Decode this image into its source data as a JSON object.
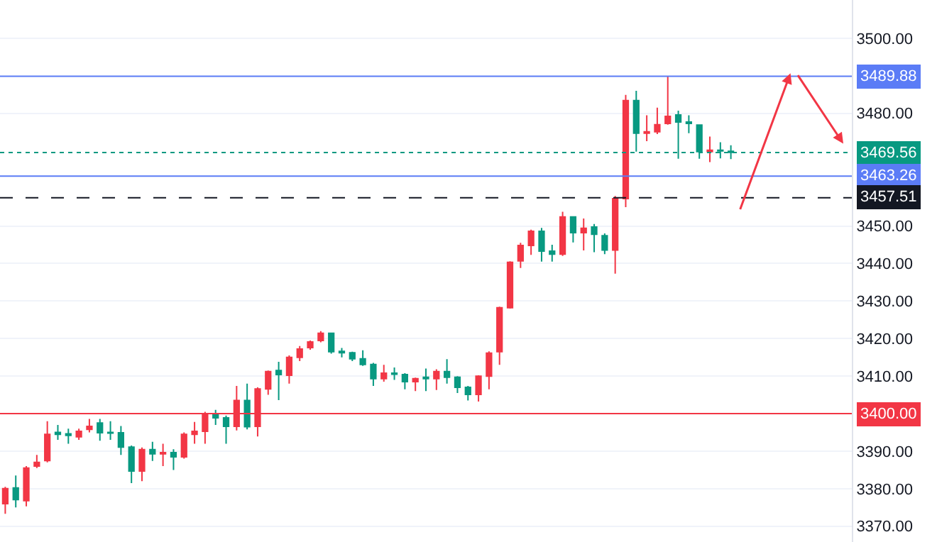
{
  "chart_data": {
    "type": "candlestick",
    "categories": [
      null,
      null,
      null,
      null,
      null,
      null,
      null,
      null,
      null,
      null,
      null,
      null,
      null,
      null,
      null,
      null,
      null,
      null,
      null,
      null,
      null,
      null,
      null,
      null,
      null,
      null,
      null,
      null,
      null,
      null,
      null,
      null,
      null,
      null,
      null,
      null,
      null,
      null,
      null,
      null,
      null,
      null,
      null,
      null,
      null,
      null,
      null,
      null,
      null,
      null,
      null,
      null,
      null,
      null,
      null,
      null,
      null,
      null,
      null,
      null,
      null,
      null,
      null,
      null,
      null,
      null,
      null,
      null,
      null,
      null,
      null,
      null,
      null,
      null,
      null,
      null,
      null,
      null,
      null,
      null,
      null
    ],
    "ohlc": [
      [
        3376,
        3380.5,
        3373.3,
        3380
      ],
      [
        3380.2,
        3383.5,
        3375,
        3377.1
      ],
      [
        3376.8,
        3386,
        3375.3,
        3385.5
      ],
      [
        3386,
        3389,
        3385.5,
        3387
      ],
      [
        3387.5,
        3398,
        3387,
        3394.5
      ],
      [
        3395,
        3397,
        3393,
        3394.5
      ],
      [
        3394.6,
        3396,
        3392,
        3394.2
      ],
      [
        3393.8,
        3396,
        3393,
        3395.3
      ],
      [
        3395.8,
        3398.6,
        3395,
        3396.6
      ],
      [
        3397.5,
        3398.6,
        3392.8,
        3394.9
      ],
      [
        3395,
        3398,
        3393,
        3394.8
      ],
      [
        3394.9,
        3396.7,
        3389,
        3391.1
      ],
      [
        3391.1,
        3391.5,
        3381.5,
        3384.7
      ],
      [
        3384.7,
        3391,
        3382,
        3390.4
      ],
      [
        3390.4,
        3392.5,
        3387.4,
        3389.3
      ],
      [
        3389.3,
        3392,
        3386,
        3389.6
      ],
      [
        3389.6,
        3390.5,
        3385,
        3388.5
      ],
      [
        3388.5,
        3395,
        3388,
        3394.5
      ],
      [
        3394.5,
        3397.8,
        3392,
        3395.3
      ],
      [
        3395.3,
        3400.5,
        3392,
        3400
      ],
      [
        3400,
        3401,
        3397,
        3398.9
      ],
      [
        3398.9,
        3399.5,
        3392,
        3396.6
      ],
      [
        3396.6,
        3407.4,
        3395.5,
        3403.5
      ],
      [
        3403.5,
        3408,
        3395.8,
        3396.5
      ],
      [
        3396.6,
        3407,
        3393.9,
        3406.6
      ],
      [
        3406.6,
        3411.5,
        3405,
        3411.2
      ],
      [
        3411.5,
        3413.8,
        3403.6,
        3410.4
      ],
      [
        3410.2,
        3415.5,
        3408,
        3415
      ],
      [
        3415,
        3418,
        3414,
        3417.2
      ],
      [
        3417.6,
        3419.5,
        3417,
        3419.1
      ],
      [
        3419.5,
        3422,
        3419,
        3421.4
      ],
      [
        3421.4,
        3421.5,
        3416,
        3416.5
      ],
      [
        3416.6,
        3417.5,
        3415,
        3416.2
      ],
      [
        3416.2,
        3416.5,
        3414,
        3414.6
      ],
      [
        3414.6,
        3416.9,
        3412.7,
        3413.1
      ],
      [
        3413.1,
        3413.5,
        3407.4,
        3409.3
      ],
      [
        3409.3,
        3413,
        3408.5,
        3410.8
      ],
      [
        3410.8,
        3412.3,
        3409,
        3410.5
      ],
      [
        3410.4,
        3410.8,
        3406.5,
        3408.5
      ],
      [
        3408.5,
        3409.6,
        3406,
        3409.3
      ],
      [
        3409.7,
        3412,
        3406,
        3409.3
      ],
      [
        3409.3,
        3411.8,
        3406.3,
        3411.2
      ],
      [
        3411.2,
        3414.5,
        3408,
        3409.7
      ],
      [
        3409.7,
        3410,
        3405.5,
        3407
      ],
      [
        3407,
        3407.4,
        3403.5,
        3405.1
      ],
      [
        3405.1,
        3410.2,
        3403.2,
        3410
      ],
      [
        3410,
        3416.6,
        3406.5,
        3416.1
      ],
      [
        3416.5,
        3428.5,
        3413,
        3428.2
      ],
      [
        3428.2,
        3440.6,
        3428,
        3440.3
      ],
      [
        3440.7,
        3445.5,
        3438.8,
        3444.8
      ],
      [
        3444.8,
        3449,
        3442.3,
        3448.6
      ],
      [
        3448.6,
        3449.5,
        3440.5,
        3443.3
      ],
      [
        3443.3,
        3445,
        3440.5,
        3442.5
      ],
      [
        3442.5,
        3453.8,
        3442,
        3452.4
      ],
      [
        3452.4,
        3452.6,
        3445.6,
        3448.2
      ],
      [
        3448.2,
        3452,
        3443.5,
        3449.4
      ],
      [
        3449.7,
        3450.5,
        3443,
        3447.8
      ],
      [
        3447.4,
        3448,
        3442.5,
        3443.6
      ],
      [
        3443.6,
        3458,
        3437.3,
        3457.3
      ],
      [
        3457.3,
        3484.9,
        3455,
        3483.4
      ],
      [
        3483.4,
        3486,
        3469.8,
        3474.7
      ],
      [
        3474.7,
        3479.5,
        3472.6,
        3475.1
      ],
      [
        3475.1,
        3481.5,
        3474.5,
        3477
      ],
      [
        3477.3,
        3489.9,
        3477,
        3479.2
      ],
      [
        3479.6,
        3480.7,
        3467.9,
        3477.7
      ],
      [
        3477.7,
        3479.5,
        3474.7,
        3477.3
      ],
      [
        3476.9,
        3477,
        3467.9,
        3469.8
      ],
      [
        3469.8,
        3473.8,
        3467,
        3470.2
      ],
      [
        3470.2,
        3472.3,
        3468,
        3470
      ],
      [
        3469.9,
        3471.5,
        3467.8,
        3469.6
      ],
      null,
      null,
      null,
      null,
      null,
      null,
      null,
      null,
      null,
      null,
      null
    ],
    "colors": [
      "#f23645",
      "#089981",
      "#f23645",
      "#f23645",
      "#f23645",
      "#089981",
      "#089981",
      "#f23645",
      "#f23645",
      "#089981",
      "#089981",
      "#089981",
      "#089981",
      "#f23645",
      "#089981",
      "#f23645",
      "#089981",
      "#f23645",
      "#f23645",
      "#f23645",
      "#089981",
      "#089981",
      "#f23645",
      "#089981",
      "#f23645",
      "#f23645",
      "#089981",
      "#f23645",
      "#f23645",
      "#f23645",
      "#f23645",
      "#089981",
      "#089981",
      "#089981",
      "#089981",
      "#089981",
      "#f23645",
      "#089981",
      "#089981",
      "#f23645",
      "#089981",
      "#f23645",
      "#089981",
      "#089981",
      "#089981",
      "#f23645",
      "#f23645",
      "#f23645",
      "#f23645",
      "#f23645",
      "#f23645",
      "#089981",
      "#089981",
      "#f23645",
      "#089981",
      "#f23645",
      "#089981",
      "#089981",
      "#f23645",
      "#f23645",
      "#089981",
      "#f23645",
      "#f23645",
      "#f23645",
      "#089981",
      "#089981",
      "#089981",
      "#f23645",
      "#089981",
      "#089981",
      null,
      null,
      null,
      null,
      null,
      null,
      null,
      null,
      null,
      null,
      null
    ],
    "ylim": [
      3365.8,
      3510.2
    ],
    "yticks": [
      {
        "value": 3370,
        "label": "3370.00"
      },
      {
        "value": 3380,
        "label": "3380.00"
      },
      {
        "value": 3390,
        "label": "3390.00"
      },
      {
        "value": 3410,
        "label": "3410.00"
      },
      {
        "value": 3420,
        "label": "3420.00"
      },
      {
        "value": 3430,
        "label": "3430.00"
      },
      {
        "value": 3440,
        "label": "3440.00"
      },
      {
        "value": 3450,
        "label": "3450.00"
      },
      {
        "value": 3480,
        "label": "3480.00"
      },
      {
        "value": 3500,
        "label": "3500.00"
      }
    ],
    "grid": "y",
    "tick_labels": "y",
    "ref_lines": [
      {
        "axis": "y",
        "value": 3489.88,
        "label": "3489.88",
        "color": "#5b7cf6",
        "line_style": "solid"
      },
      {
        "axis": "y",
        "value": 3469.56,
        "label": "3469.56",
        "color": "#089981",
        "line_style": "dotted"
      },
      {
        "axis": "y",
        "value": 3463.26,
        "label": "3463.26",
        "color": "#5b7cf6",
        "line_style": "solid"
      },
      {
        "axis": "y",
        "value": 3457.51,
        "label": "3457.51",
        "color": "#131722",
        "line_style": "dashed"
      },
      {
        "axis": "y",
        "value": 3400.0,
        "label": "3400.00",
        "color": "#f23645",
        "line_style": "solid"
      }
    ]
  }
}
